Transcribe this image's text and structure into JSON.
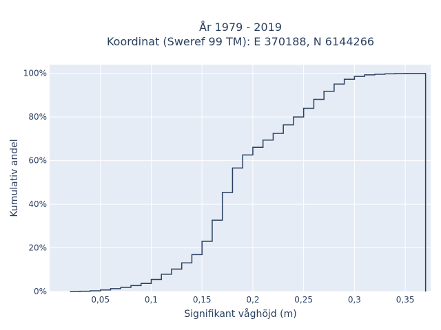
{
  "chart_data": {
    "type": "line",
    "step": "hv",
    "title_line1": "År 1979 - 2019",
    "title_line2": "Koordinat (Sweref 99 TM): E 370188, N 6144266",
    "xlabel": "Signifikant våghöjd (m)",
    "ylabel": "Kumulativ andel",
    "xlim": [
      0.0,
      0.375
    ],
    "ylim": [
      0,
      104
    ],
    "x_ticks": [
      {
        "value": 0.05,
        "label": "0,05"
      },
      {
        "value": 0.1,
        "label": "0,1"
      },
      {
        "value": 0.15,
        "label": "0,15"
      },
      {
        "value": 0.2,
        "label": "0,2"
      },
      {
        "value": 0.25,
        "label": "0,25"
      },
      {
        "value": 0.3,
        "label": "0,3"
      },
      {
        "value": 0.35,
        "label": "0,35"
      }
    ],
    "y_ticks": [
      {
        "value": 0,
        "label": "0%"
      },
      {
        "value": 20,
        "label": "20%"
      },
      {
        "value": 40,
        "label": "40%"
      },
      {
        "value": 60,
        "label": "60%"
      },
      {
        "value": 80,
        "label": "80%"
      },
      {
        "value": 100,
        "label": "100%"
      }
    ],
    "x": [
      0.02,
      0.03,
      0.04,
      0.05,
      0.06,
      0.07,
      0.08,
      0.09,
      0.1,
      0.11,
      0.12,
      0.13,
      0.14,
      0.15,
      0.16,
      0.17,
      0.18,
      0.19,
      0.2,
      0.21,
      0.22,
      0.23,
      0.24,
      0.25,
      0.26,
      0.27,
      0.28,
      0.29,
      0.3,
      0.31,
      0.32,
      0.33,
      0.34,
      0.35,
      0.36,
      0.37
    ],
    "y": [
      0.0,
      0.1,
      0.3,
      0.7,
      1.3,
      1.9,
      2.7,
      3.7,
      5.5,
      7.9,
      10.3,
      13.1,
      16.9,
      23.0,
      32.7,
      45.4,
      56.6,
      62.6,
      66.1,
      69.4,
      72.5,
      76.4,
      80.0,
      84.0,
      88.1,
      91.8,
      95.1,
      97.3,
      98.6,
      99.3,
      99.6,
      99.8,
      99.9,
      100.0,
      100.0,
      0.0
    ],
    "line_color": "#2a3f5f",
    "background_color": "#e5ecf6",
    "grid": true
  }
}
